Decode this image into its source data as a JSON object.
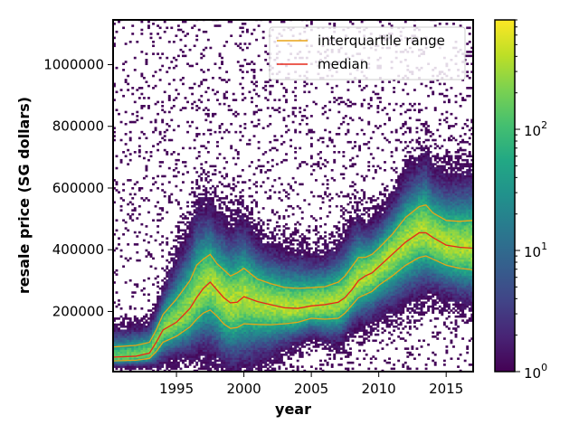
{
  "chart_data": {
    "type": "heatmap",
    "title": "",
    "xlabel": "year",
    "ylabel": "resale price (SG dollars)",
    "xlim": [
      1990.3,
      2017.0
    ],
    "ylim": [
      5000,
      1145000
    ],
    "xticks": [
      1995,
      2000,
      2005,
      2010,
      2015
    ],
    "xtick_labels": [
      "1995",
      "2000",
      "2005",
      "2010",
      "2015"
    ],
    "yticks": [
      200000,
      400000,
      600000,
      800000,
      1000000
    ],
    "ytick_labels": [
      "200000",
      "400000",
      "600000",
      "800000",
      "1000000"
    ],
    "grid": false,
    "legend_position": "top-right",
    "colormap": "viridis",
    "colorbar": {
      "scale": "log",
      "range": [
        1,
        800
      ],
      "ticks": [
        1,
        10,
        100
      ],
      "tick_labels": [
        "10",
        "10",
        "10"
      ],
      "tick_exponents": [
        "0",
        "1",
        "2"
      ]
    },
    "series": [
      {
        "name": "interquartile range",
        "color": "#e8a317",
        "upper": {
          "x": [
            1990.3,
            1992,
            1993,
            1993.5,
            1994,
            1995,
            1996,
            1996.5,
            1997,
            1997.5,
            1998,
            1998.5,
            1999,
            1999.5,
            2000,
            2001,
            2002,
            2003,
            2004,
            2005,
            2006,
            2007,
            2007.5,
            2008,
            2008.5,
            2009,
            2009.5,
            2010,
            2011,
            2012,
            2013,
            2013.5,
            2014,
            2015,
            2016,
            2017
          ],
          "y": [
            85000,
            90000,
            100000,
            140000,
            190000,
            240000,
            300000,
            350000,
            370000,
            385000,
            355000,
            335000,
            315000,
            325000,
            340000,
            305000,
            290000,
            278000,
            275000,
            277000,
            280000,
            295000,
            315000,
            345000,
            375000,
            375000,
            385000,
            405000,
            450000,
            505000,
            540000,
            545000,
            520000,
            495000,
            492000,
            495000
          ]
        },
        "lower": {
          "x": [
            1990.3,
            1992,
            1993,
            1993.5,
            1994,
            1995,
            1996,
            1996.5,
            1997,
            1997.5,
            1998,
            1998.5,
            1999,
            1999.5,
            2000,
            2001,
            2002,
            2003,
            2004,
            2005,
            2006,
            2007,
            2007.5,
            2008,
            2008.5,
            2009,
            2009.5,
            2010,
            2011,
            2012,
            2013,
            2013.5,
            2014,
            2015,
            2016,
            2017
          ],
          "y": [
            40000,
            42000,
            48000,
            70000,
            100000,
            120000,
            150000,
            175000,
            195000,
            205000,
            185000,
            160000,
            145000,
            148000,
            160000,
            158000,
            157000,
            160000,
            165000,
            178000,
            175000,
            178000,
            195000,
            220000,
            245000,
            255000,
            265000,
            285000,
            315000,
            350000,
            375000,
            380000,
            370000,
            350000,
            340000,
            335000
          ]
        }
      },
      {
        "name": "median",
        "color": "#e6281b",
        "x": [
          1990.3,
          1992,
          1993,
          1993.5,
          1994,
          1995,
          1996,
          1996.5,
          1997,
          1997.5,
          1998,
          1998.5,
          1999,
          1999.5,
          2000,
          2001,
          2002,
          2003,
          2004,
          2005,
          2006,
          2007,
          2007.5,
          2008,
          2008.5,
          2009,
          2009.5,
          2010,
          2011,
          2012,
          2013,
          2013.5,
          2014,
          2015,
          2016,
          2017
        ],
        "y": [
          52000,
          55000,
          65000,
          100000,
          140000,
          165000,
          210000,
          245000,
          275000,
          295000,
          270000,
          245000,
          228000,
          230000,
          248000,
          232000,
          222000,
          212000,
          210000,
          218000,
          222000,
          230000,
          245000,
          270000,
          300000,
          315000,
          325000,
          345000,
          385000,
          425000,
          455000,
          455000,
          440000,
          415000,
          408000,
          405000
        ]
      }
    ]
  }
}
